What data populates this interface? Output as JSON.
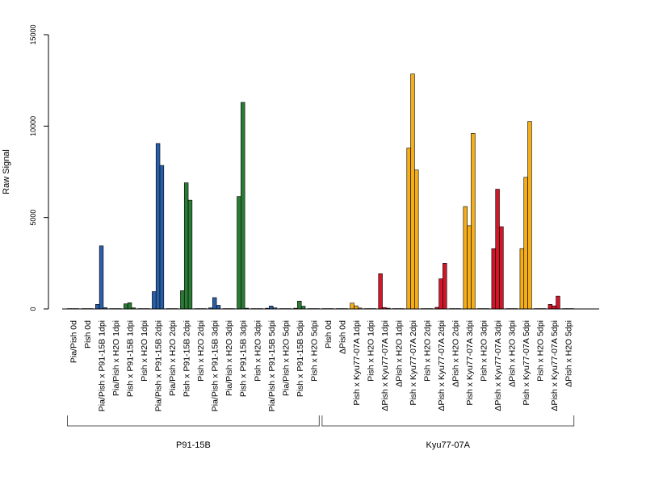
{
  "chart_data": {
    "type": "bar",
    "ylabel": "Raw Signal",
    "ylim": [
      0,
      15000
    ],
    "yticks": [
      0,
      5000,
      10000,
      15000
    ],
    "bars_per_group": 3,
    "colors": {
      "P91-15B_blue": "#2a5fa8",
      "P91-15B_green": "#2b7a35",
      "Kyu77-07A_orange": "#f5ad18",
      "Kyu77-07A_red": "#d2162a"
    },
    "categories": [
      "Pia/Pish 0d",
      "Pish 0d",
      "Pia/Pish x P91-15B 1dpi",
      "Pia/Pish x H2O 1dpi",
      "Pish x P91-15B 1dpi",
      "Pish x H2O 1dpi",
      "Pia/Pish x P91-15B 2dpi",
      "Pia/Pish x H2O 2dpi",
      "Pish x P91-15B 2dpi",
      "Pish x H2O 2dpi",
      "Pia/Pish x P91-15B 3dpi",
      "Pia/Pish x H2O 3dpi",
      "Pish x P91-15B 3dpi",
      "Pish x H2O 3dpi",
      "Pia/Pish x P91-15B 5dpi",
      "Pia/Pish x H2O 5dpi",
      "Pish x P91-15B 5dpi",
      "Pish x H2O 5dpi",
      "Pish 0d",
      "ΔPish 0d",
      "Pish x Kyu77-07A 1dpi",
      "Pish x H2O 1dpi",
      "ΔPish x Kyu77-07A 1dpi",
      "ΔPish x H2O 1dpi",
      "Pish x Kyu77-07A 2dpi",
      "Pish x H2O 2dpi",
      "ΔPish x Kyu77-07A 2dpi",
      "ΔPish x H2O 2dpi",
      "Pish x Kyu77-07A 3dpi",
      "Pish x H2O 3dpi",
      "ΔPish x Kyu77-07A 3dpi",
      "ΔPish x H2O 3dpi",
      "Pish x Kyu77-07A 5dpi",
      "Pish x H2O 5dpi",
      "ΔPish x Kyu77-07A 5dpi",
      "ΔPish x H2O 5dpi"
    ],
    "colorKeys": [
      "P91-15B_blue",
      "P91-15B_blue",
      "P91-15B_blue",
      "P91-15B_blue",
      "P91-15B_green",
      "P91-15B_green",
      "P91-15B_blue",
      "P91-15B_blue",
      "P91-15B_green",
      "P91-15B_green",
      "P91-15B_blue",
      "P91-15B_blue",
      "P91-15B_green",
      "P91-15B_green",
      "P91-15B_blue",
      "P91-15B_blue",
      "P91-15B_green",
      "P91-15B_green",
      "Kyu77-07A_orange",
      "Kyu77-07A_red",
      "Kyu77-07A_orange",
      "Kyu77-07A_orange",
      "Kyu77-07A_red",
      "Kyu77-07A_red",
      "Kyu77-07A_orange",
      "Kyu77-07A_orange",
      "Kyu77-07A_red",
      "Kyu77-07A_red",
      "Kyu77-07A_orange",
      "Kyu77-07A_orange",
      "Kyu77-07A_red",
      "Kyu77-07A_red",
      "Kyu77-07A_orange",
      "Kyu77-07A_orange",
      "Kyu77-07A_red",
      "Kyu77-07A_red"
    ],
    "values": [
      [
        20,
        20,
        20
      ],
      [
        20,
        20,
        20
      ],
      [
        250,
        3450,
        70
      ],
      [
        20,
        20,
        20
      ],
      [
        280,
        340,
        60
      ],
      [
        20,
        20,
        20
      ],
      [
        950,
        9050,
        7850
      ],
      [
        20,
        20,
        20
      ],
      [
        1000,
        6900,
        5950
      ],
      [
        20,
        20,
        20
      ],
      [
        60,
        620,
        200
      ],
      [
        20,
        20,
        20
      ],
      [
        6150,
        11300,
        40
      ],
      [
        20,
        20,
        20
      ],
      [
        40,
        160,
        60
      ],
      [
        20,
        20,
        20
      ],
      [
        40,
        430,
        150
      ],
      [
        20,
        20,
        20
      ],
      [
        20,
        20,
        20
      ],
      [
        20,
        20,
        20
      ],
      [
        320,
        170,
        50
      ],
      [
        20,
        20,
        20
      ],
      [
        1930,
        80,
        40
      ],
      [
        20,
        20,
        20
      ],
      [
        8800,
        12850,
        7600
      ],
      [
        20,
        20,
        20
      ],
      [
        90,
        1650,
        2500
      ],
      [
        20,
        20,
        20
      ],
      [
        5600,
        4550,
        9600
      ],
      [
        20,
        20,
        20
      ],
      [
        3300,
        6550,
        4500
      ],
      [
        20,
        20,
        20
      ],
      [
        3300,
        7200,
        10250
      ],
      [
        20,
        20,
        20
      ],
      [
        250,
        170,
        700
      ],
      [
        20,
        20,
        20
      ]
    ],
    "groups": [
      {
        "label": "P91-15B",
        "start": 0,
        "end": 17
      },
      {
        "label": "Kyu77-07A",
        "start": 18,
        "end": 35
      }
    ]
  }
}
